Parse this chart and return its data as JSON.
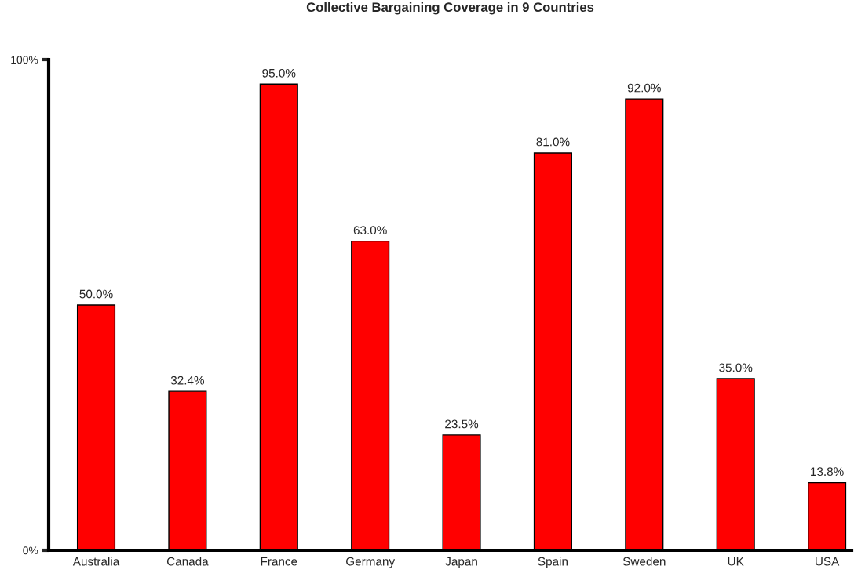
{
  "chart_data": {
    "type": "bar",
    "title": "Collective Bargaining Coverage in 9 Countries",
    "categories": [
      "Australia",
      "Canada",
      "France",
      "Germany",
      "Japan",
      "Spain",
      "Sweden",
      "UK",
      "USA"
    ],
    "values": [
      50.0,
      32.4,
      95.0,
      63.0,
      23.5,
      81.0,
      92.0,
      35.0,
      13.8
    ],
    "value_labels": [
      "50.0%",
      "32.4%",
      "95.0%",
      "63.0%",
      "23.5%",
      "81.0%",
      "92.0%",
      "35.0%",
      "13.8%"
    ],
    "color": "#ff0000",
    "ylim": [
      0,
      100
    ],
    "yticks": [
      {
        "value": 0,
        "label": "0%"
      },
      {
        "value": 100,
        "label": "100%"
      }
    ],
    "grid": false,
    "legend": false
  }
}
